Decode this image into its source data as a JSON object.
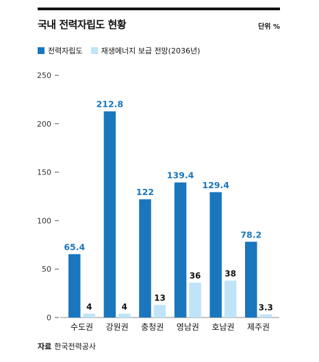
{
  "header": {
    "title": "국내 전력자립도 현황",
    "unit": "단위 %"
  },
  "legend": {
    "items": [
      {
        "label": "전력자립도",
        "color": "#1a76bd"
      },
      {
        "label": "재생에너지 보급 전망(2036년)",
        "color": "#bfe3f7"
      }
    ]
  },
  "source": {
    "label": "자료",
    "text": "한국전력공사"
  },
  "chart_data": {
    "type": "bar",
    "categories": [
      "수도권",
      "강원권",
      "충청권",
      "영남권",
      "호남권",
      "제주권"
    ],
    "series": [
      {
        "name": "전력자립도",
        "values": [
          65.4,
          212.8,
          122,
          139.4,
          129.4,
          78.2
        ],
        "color": "#1a76bd",
        "label_color": "#1a76bd"
      },
      {
        "name": "재생에너지 보급 전망(2036년)",
        "values": [
          4,
          4,
          13,
          36,
          38,
          3.3
        ],
        "color": "#bfe3f7",
        "label_color": "#111111"
      }
    ],
    "yticks": [
      0,
      50,
      100,
      150,
      200,
      250
    ],
    "ylim": [
      0,
      250
    ],
    "xlabel": "",
    "ylabel": ""
  }
}
